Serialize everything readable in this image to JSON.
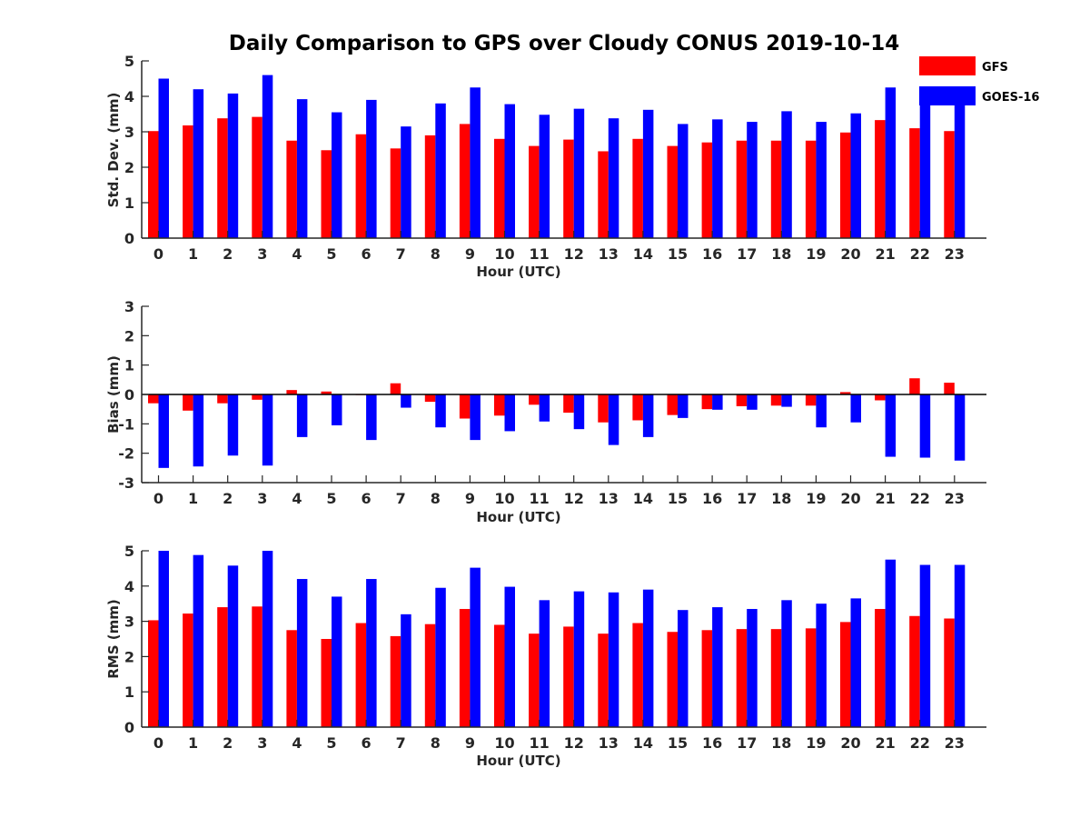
{
  "figure": {
    "title": "Daily Comparison to GPS over Cloudy CONUS 2019-10-14"
  },
  "legend": {
    "placement": "top-right",
    "entries": [
      {
        "label": "GFS",
        "color": "#ff0000"
      },
      {
        "label": "GOES-16",
        "color": "#0000ff"
      }
    ]
  },
  "chart_data": [
    {
      "type": "bar",
      "title": "Daily Comparison to GPS over Cloudy CONUS 2019-10-14",
      "xlabel": "Hour (UTC)",
      "ylabel": "Std. Dev. (mm)",
      "ylim": [
        0,
        5
      ],
      "yticks": [
        0,
        1,
        2,
        3,
        4,
        5
      ],
      "categories": [
        "0",
        "1",
        "2",
        "3",
        "4",
        "5",
        "6",
        "7",
        "8",
        "9",
        "10",
        "11",
        "12",
        "13",
        "14",
        "15",
        "16",
        "17",
        "18",
        "19",
        "20",
        "21",
        "22",
        "23"
      ],
      "series": [
        {
          "name": "GFS",
          "color": "#ff0000",
          "values": [
            3.02,
            3.18,
            3.38,
            3.42,
            2.75,
            2.48,
            2.93,
            2.53,
            2.9,
            3.22,
            2.8,
            2.6,
            2.78,
            2.45,
            2.8,
            2.6,
            2.7,
            2.75,
            2.75,
            2.75,
            2.98,
            3.33,
            3.1,
            3.02
          ]
        },
        {
          "name": "GOES-16",
          "color": "#0000ff",
          "values": [
            4.5,
            4.2,
            4.08,
            4.6,
            3.92,
            3.55,
            3.9,
            3.15,
            3.8,
            4.25,
            3.78,
            3.48,
            3.65,
            3.38,
            3.62,
            3.22,
            3.35,
            3.28,
            3.58,
            3.28,
            3.52,
            4.25,
            4.05,
            3.95
          ]
        }
      ]
    },
    {
      "type": "bar",
      "xlabel": "Hour (UTC)",
      "ylabel": "Bias (mm)",
      "ylim": [
        -3,
        3
      ],
      "yticks": [
        -3,
        -2,
        -1,
        0,
        1,
        2,
        3
      ],
      "categories": [
        "0",
        "1",
        "2",
        "3",
        "4",
        "5",
        "6",
        "7",
        "8",
        "9",
        "10",
        "11",
        "12",
        "13",
        "14",
        "15",
        "16",
        "17",
        "18",
        "19",
        "20",
        "21",
        "22",
        "23"
      ],
      "series": [
        {
          "name": "GFS",
          "color": "#ff0000",
          "values": [
            -0.3,
            -0.55,
            -0.3,
            -0.18,
            0.15,
            0.1,
            -0.02,
            0.38,
            -0.25,
            -0.82,
            -0.72,
            -0.35,
            -0.62,
            -0.95,
            -0.88,
            -0.7,
            -0.5,
            -0.4,
            -0.38,
            -0.38,
            0.08,
            -0.2,
            0.55,
            0.4
          ]
        },
        {
          "name": "GOES-16",
          "color": "#0000ff",
          "values": [
            -2.5,
            -2.45,
            -2.08,
            -2.42,
            -1.45,
            -1.05,
            -1.55,
            -0.45,
            -1.12,
            -1.55,
            -1.25,
            -0.92,
            -1.18,
            -1.72,
            -1.45,
            -0.8,
            -0.52,
            -0.52,
            -0.42,
            -1.12,
            -0.95,
            -2.12,
            -2.15,
            -2.25
          ]
        }
      ]
    },
    {
      "type": "bar",
      "xlabel": "Hour (UTC)",
      "ylabel": "RMS (mm)",
      "ylim": [
        0,
        5
      ],
      "yticks": [
        0,
        1,
        2,
        3,
        4,
        5
      ],
      "categories": [
        "0",
        "1",
        "2",
        "3",
        "4",
        "5",
        "6",
        "7",
        "8",
        "9",
        "10",
        "11",
        "12",
        "13",
        "14",
        "15",
        "16",
        "17",
        "18",
        "19",
        "20",
        "21",
        "22",
        "23"
      ],
      "series": [
        {
          "name": "GFS",
          "color": "#ff0000",
          "values": [
            3.03,
            3.22,
            3.4,
            3.42,
            2.75,
            2.5,
            2.95,
            2.58,
            2.92,
            3.35,
            2.9,
            2.65,
            2.85,
            2.65,
            2.95,
            2.7,
            2.75,
            2.78,
            2.78,
            2.8,
            2.98,
            3.35,
            3.15,
            3.08
          ]
        },
        {
          "name": "GOES-16",
          "color": "#0000ff",
          "values": [
            5.0,
            4.88,
            4.58,
            5.0,
            4.2,
            3.7,
            4.2,
            3.2,
            3.95,
            4.52,
            3.98,
            3.6,
            3.85,
            3.82,
            3.9,
            3.32,
            3.4,
            3.35,
            3.6,
            3.5,
            3.65,
            4.75,
            4.6,
            4.6
          ]
        }
      ]
    }
  ]
}
